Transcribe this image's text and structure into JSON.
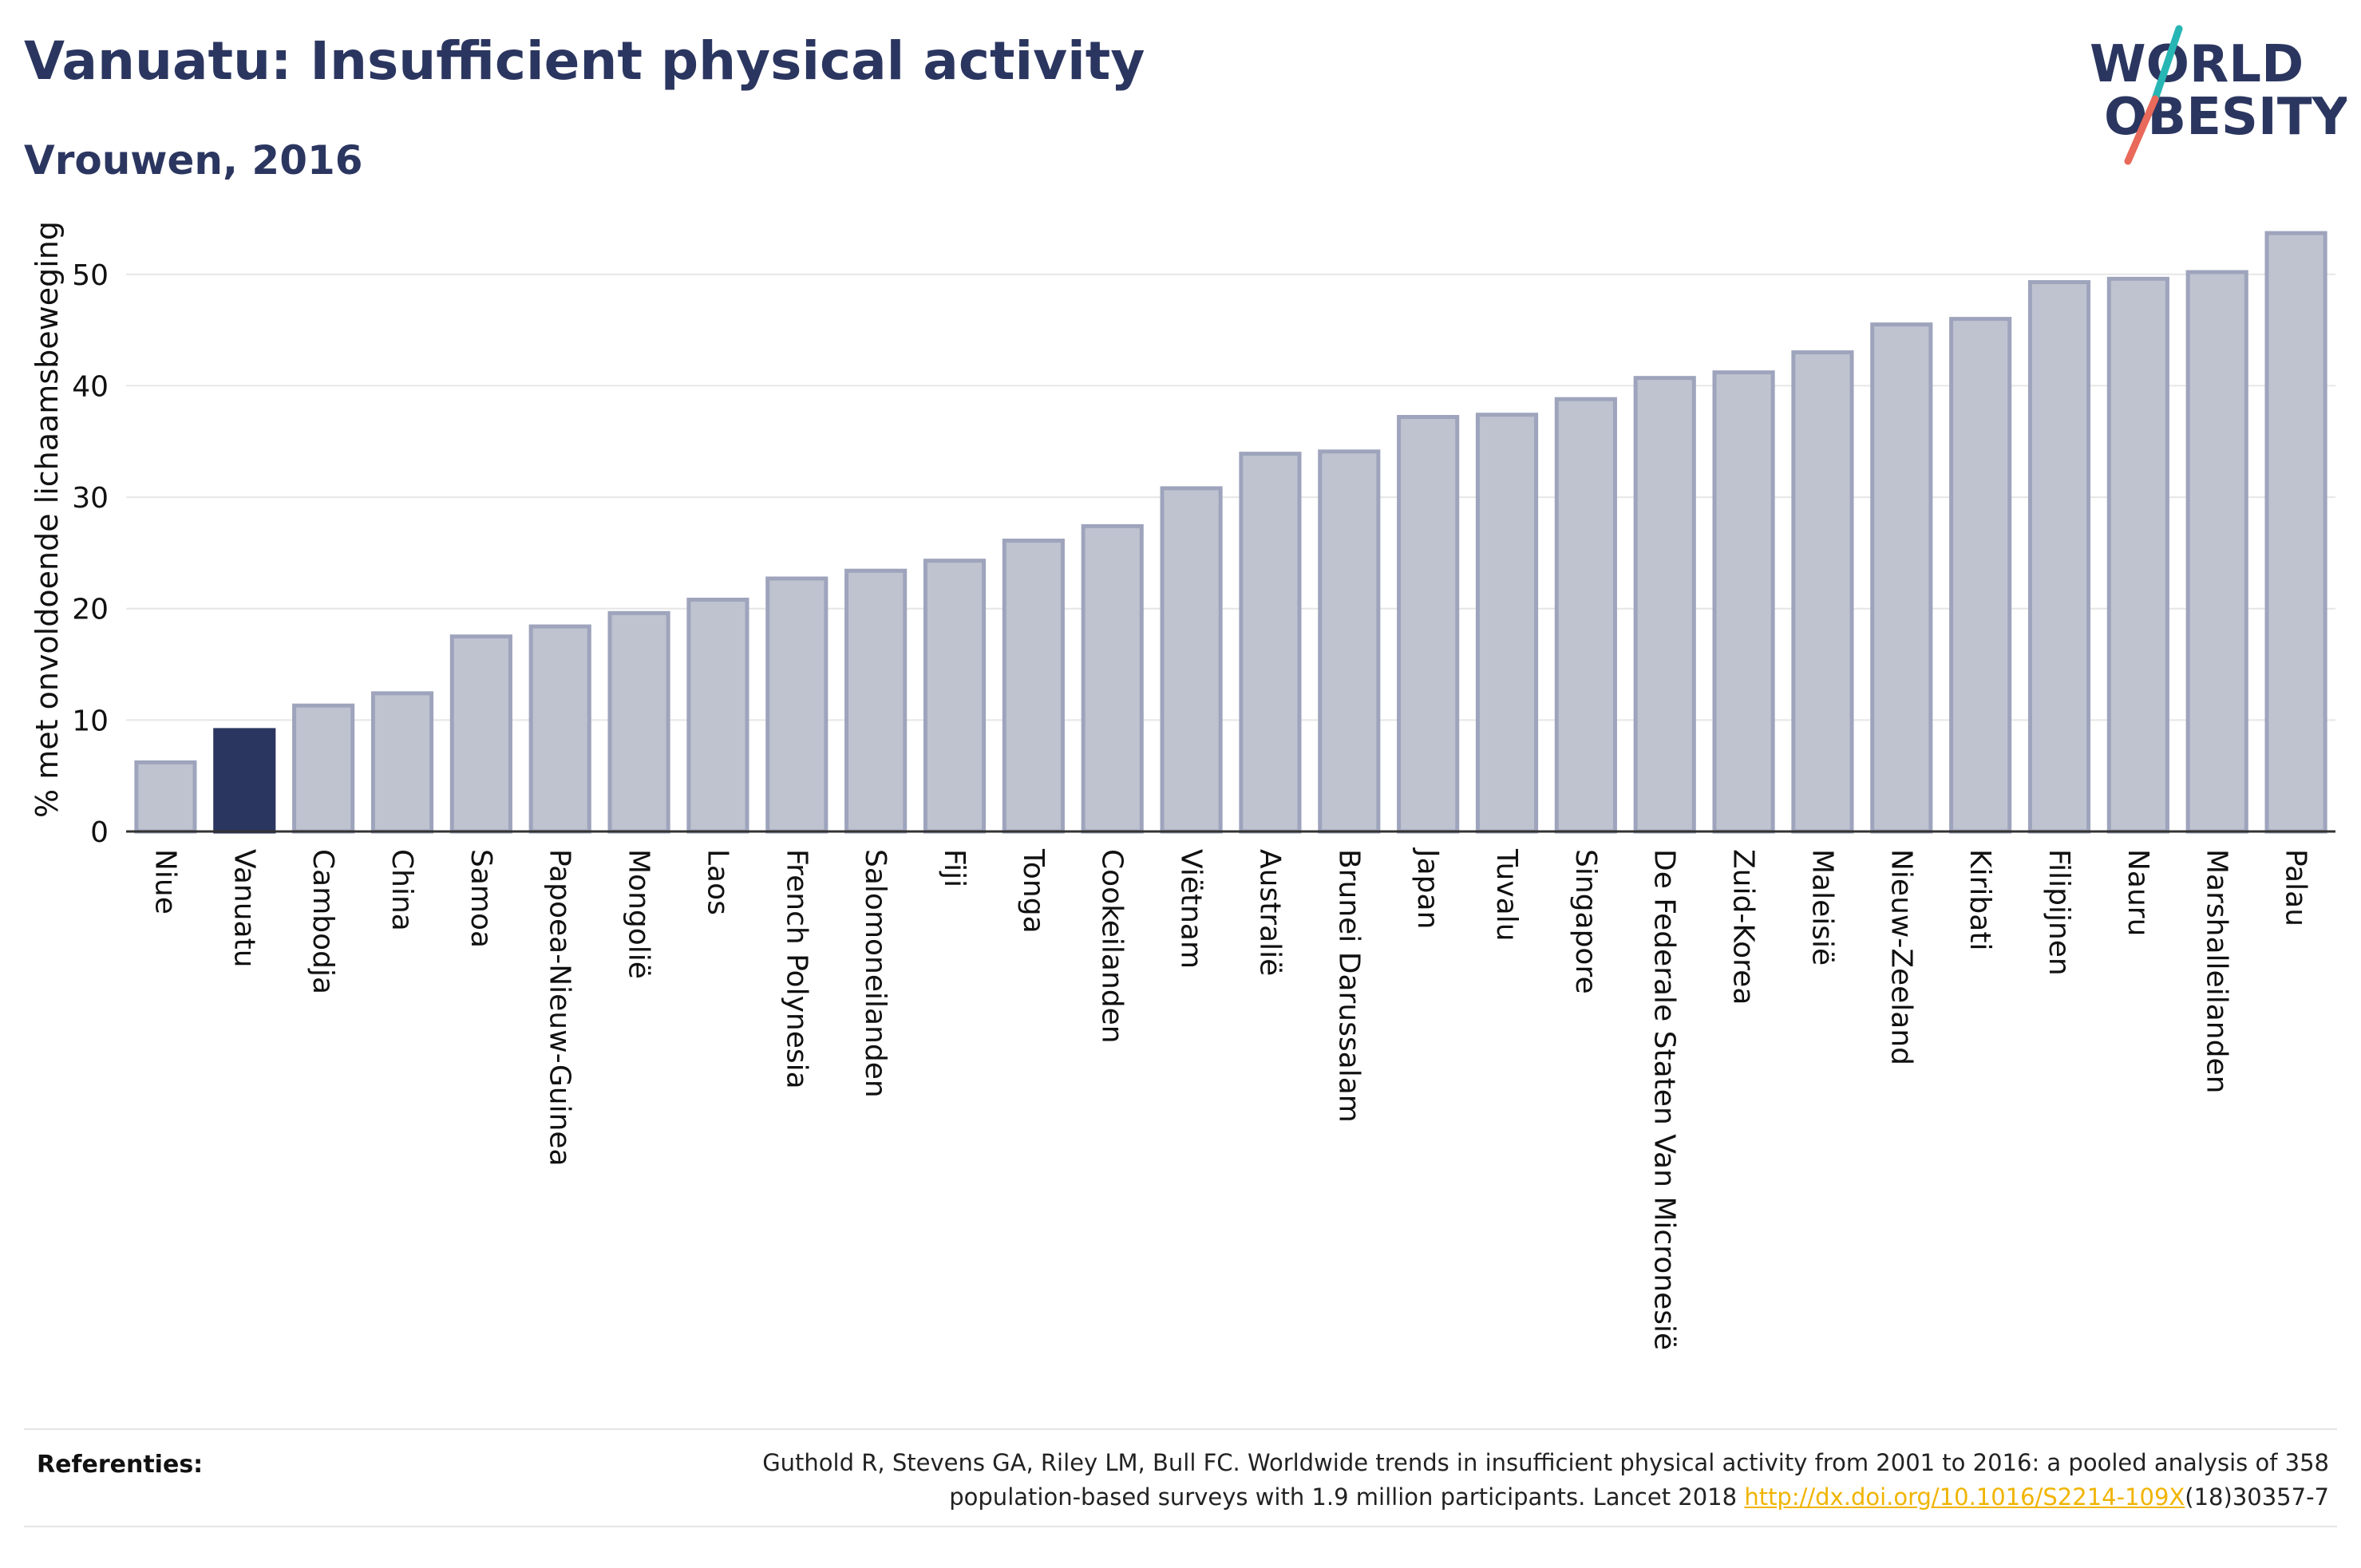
{
  "header": {
    "title": "Vanuatu: Insufficient physical activity",
    "subtitle": "Vrouwen, 2016"
  },
  "logo": {
    "line1": "WORLD",
    "line2": "OBESITY",
    "text_color": "#2b3660",
    "slash_top_color": "#27b6b4",
    "slash_bottom_color": "#e9695a"
  },
  "colors": {
    "bar_fill": "#bfc3d0",
    "bar_stroke": "#9ea4bc",
    "highlight": "#2b3660",
    "grid": "#e6e6e6",
    "axis": "#333333",
    "link": "#f0b400"
  },
  "chart_data": {
    "type": "bar",
    "ylabel": "% met onvoldoende lichaamsbeweging",
    "xlabel": "",
    "ylim": [
      0,
      56
    ],
    "yticks": [
      0,
      10,
      20,
      30,
      40,
      50
    ],
    "grid": true,
    "highlight_category": "Vanuatu",
    "categories": [
      "Niue",
      "Vanuatu",
      "Cambodja",
      "China",
      "Samoa",
      "Papoea-Nieuw-Guinea",
      "Mongolië",
      "Laos",
      "French Polynesia",
      "Salomoneilanden",
      "Fiji",
      "Tonga",
      "Cookeilanden",
      "Viëtnam",
      "Australië",
      "Brunei Darussalam",
      "Japan",
      "Tuvalu",
      "Singapore",
      "De Federale Staten Van Micronesië",
      "Zuid-Korea",
      "Maleisië",
      "Nieuw-Zeeland",
      "Kiribati",
      "Filipijnen",
      "Nauru",
      "Marshalleilanden",
      "Palau"
    ],
    "values": [
      6.2,
      9.1,
      11.3,
      12.4,
      17.5,
      18.4,
      19.6,
      20.8,
      22.7,
      23.4,
      24.3,
      26.1,
      27.4,
      30.8,
      33.9,
      34.1,
      37.2,
      37.4,
      38.8,
      40.7,
      41.2,
      43.0,
      45.5,
      46.0,
      49.3,
      49.6,
      50.2,
      53.7
    ]
  },
  "footer": {
    "references_label": "Referenties:",
    "reference_line1": "Guthold R, Stevens GA, Riley LM, Bull FC. Worldwide trends in insufficient physical activity from 2001 to 2016: a pooled analysis of 358",
    "reference_line2_pre": "population-based surveys with 1.9 million participants. Lancet 2018 ",
    "reference_link": "http://dx.doi.org/10.1016/S2214-109X",
    "reference_line2_post": "(18)30357-7"
  }
}
